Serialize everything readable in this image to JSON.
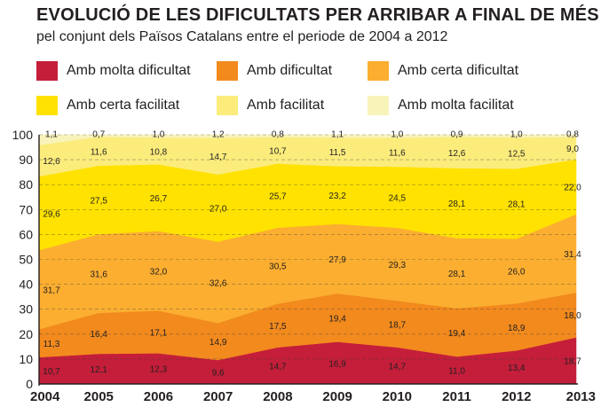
{
  "chart_data": {
    "type": "area",
    "stacked": true,
    "title": "EVOLUCIÓ DE LES DIFICULTATS PER ARRIBAR A FINAL DE MÉS",
    "subtitle": "pel conjunt dels Països Catalans entre el periode de 2004 a 2012",
    "categories": [
      "2004",
      "2005",
      "2006",
      "2007",
      "2008",
      "2009",
      "2010",
      "2011",
      "2012",
      "2013"
    ],
    "ylim": [
      0,
      100
    ],
    "yticks": [
      "0",
      "10",
      "20",
      "30",
      "40",
      "50",
      "60",
      "70",
      "80",
      "90",
      "100"
    ],
    "grid": true,
    "legend_position": "top",
    "series": [
      {
        "name": "Amb molta dificultat",
        "color": "#c41e3a",
        "values": [
          10.7,
          12.1,
          12.3,
          9.6,
          14.7,
          16.9,
          14.7,
          11.0,
          13.4,
          18.7
        ],
        "labels": [
          "10,7",
          "12,1",
          "12,3",
          "9,6",
          "14,7",
          "16,9",
          "14,7",
          "11,0",
          "13,4",
          "18,7"
        ]
      },
      {
        "name": "Amb dificultat",
        "color": "#f28a1e",
        "values": [
          11.3,
          16.4,
          17.1,
          14.9,
          17.5,
          19.4,
          18.7,
          19.4,
          18.9,
          18.0
        ],
        "labels": [
          "11,3",
          "16,4",
          "17,1",
          "14,9",
          "17,5",
          "19,4",
          "18,7",
          "19,4",
          "18,9",
          "18,0"
        ]
      },
      {
        "name": "Amb certa dificultat",
        "color": "#fbae30",
        "values": [
          31.7,
          31.6,
          32.0,
          32.6,
          30.5,
          27.9,
          29.3,
          28.1,
          26.0,
          31.4
        ],
        "labels": [
          "31,7",
          "31,6",
          "32,0",
          "32,6",
          "30,5",
          "27,9",
          "29,3",
          "28,1",
          "26,0",
          "31,4"
        ]
      },
      {
        "name": "Amb certa facilitat",
        "color": "#ffe200",
        "values": [
          29.6,
          27.5,
          26.7,
          27.0,
          25.7,
          23.2,
          24.5,
          28.1,
          28.1,
          22.0
        ],
        "labels": [
          "29,6",
          "27,5",
          "26,7",
          "27,0",
          "25,7",
          "23,2",
          "24,5",
          "28,1",
          "28,1",
          "22,0"
        ]
      },
      {
        "name": "Amb facilitat",
        "color": "#fbec7c",
        "values": [
          12.6,
          11.6,
          10.8,
          14.7,
          10.7,
          11.5,
          11.6,
          12.6,
          12.5,
          9.0
        ],
        "labels": [
          "12,6",
          "11,6",
          "10,8",
          "14,7",
          "10,7",
          "11,5",
          "11,6",
          "12,6",
          "12,5",
          "9,0"
        ]
      },
      {
        "name": "Amb molta facilitat",
        "color": "#f8f3b9",
        "values": [
          1.1,
          0.7,
          1.0,
          1.2,
          0.8,
          1.1,
          1.0,
          0.9,
          1.0,
          0.8
        ],
        "labels": [
          "1,1",
          "0,7",
          "1,0",
          "1,2",
          "0,8",
          "1,1",
          "1,0",
          "0,9",
          "1,0",
          "0,8"
        ]
      }
    ]
  }
}
